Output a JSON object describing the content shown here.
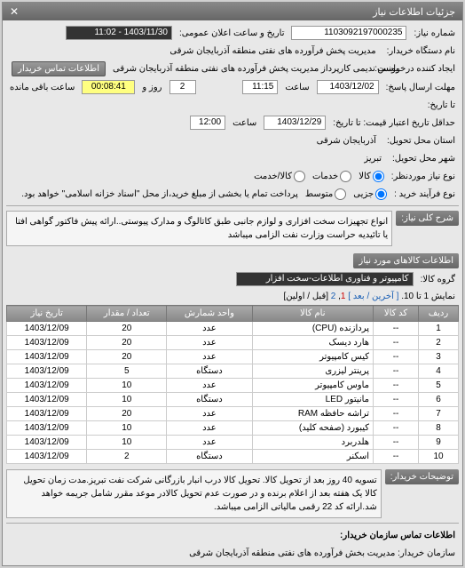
{
  "panel": {
    "title": "جزئیات اطلاعات نیاز"
  },
  "fields": {
    "need_no_label": "شماره نیاز:",
    "need_no": "1103092197000235",
    "announce_label": "تاریخ و ساعت اعلان عمومی:",
    "announce_value": "1403/11/30 - 11:02",
    "buyer_label": "نام دستگاه خریدار:",
    "buyer_value": "مدیریت پخش فرآورده های نفتی منطقه آذربایجان شرقی",
    "creator_label": "ایجاد کننده درخواست:",
    "creator_value": "یونس ندیمی کارپرداز مدیریت پخش فرآورده های نفتی منطقه آذربایجان شرقی",
    "buyer_contact_btn": "اطلاعات تماس خریدار",
    "deadline_send_label": "مهلت ارسال پاسخ:",
    "deadline_send_date": "1403/12/02",
    "time_label": "ساعت",
    "deadline_send_time": "11:15",
    "days_field": "2",
    "day_label": "روز و",
    "countdown": "00:08:41",
    "remain_label": "ساعت باقی مانده",
    "validity_label": "تا تاریخ:",
    "price_deadline_label": "حداقل تاریخ اعتبار قیمت: تا تاریخ:",
    "price_deadline_date": "1403/12/29",
    "price_deadline_time": "12:00",
    "delivery_province_label": "استان محل تحویل:",
    "delivery_province": "آذربایجان شرقی",
    "delivery_city_label": "شهر محل تحویل:",
    "delivery_city": "تبریز",
    "need_type_label": "نوع نیاز موردنظر:",
    "purchase_type_label": "نوع فرآیند خرید :",
    "payment_note": "پرداخت تمام یا بخشی از مبلغ خرید،از محل \"اسناد خزانه اسلامی\" خواهد بود.",
    "radio_kala": "کالا",
    "radio_khadamat": "خدمات",
    "radio_kala_khadamat": "کالا/خدمت",
    "radio_jozi": "جزیی",
    "radio_motavasset": "متوسط",
    "title_section": "شرح کلی نیاز:",
    "title_text": "انواع تجهیزات سخت افزاری و لوازم جانبی طبق کاتالوگ و مدارک پیوستی..ارائه پیش فاکتور گواهی افتا یا تائیدیه حراست وزارت نفت الزامی میباشد",
    "group_section": "اطلاعات کالاهای مورد نیاز",
    "group_label": "گروه کالا:",
    "group_value": "کامپیوتر و فناوری اطلاعات-سخت افزار",
    "pagination_text": "نمایش 1 تا 10.",
    "pagination_prev": "[ آخرین / بعد ]",
    "pagination_pages": [
      "1",
      "2"
    ],
    "pagination_next": "[قبل / اولین]",
    "note_label": "توضیحات خریدار:",
    "note_text": "تسویه 40 روز بعد از تحویل کالا. تحویل کالا درب انبار بازرگانی شرکت نفت تبریز.مدت زمان تحویل کالا یک هفته بعد از اعلام برنده و در صورت عدم تحویل کالادر موعد مقرر شامل جریمه خواهد شد.ارائه کد 22 رقمی مالیاتی الزامی میباشد.",
    "org_contact_label": "اطلاعات تماس سازمان خریدار:",
    "org_contact_value": "سازمان خریدار: مدیریت بخش فرآورده های نفتی منطقه آذربایجان شرقی"
  },
  "table": {
    "columns": [
      "ردیف",
      "کد کالا",
      "نام کالا",
      "واحد شمارش",
      "تعداد / مقدار",
      "تاریخ نیاز"
    ],
    "rows": [
      [
        "1",
        "--",
        "پردازنده (CPU)",
        "عدد",
        "20",
        "1403/12/09"
      ],
      [
        "2",
        "--",
        "هارد دیسک",
        "عدد",
        "20",
        "1403/12/09"
      ],
      [
        "3",
        "--",
        "کیس کامپیوتر",
        "عدد",
        "20",
        "1403/12/09"
      ],
      [
        "4",
        "--",
        "پرینتر لیزری",
        "دستگاه",
        "5",
        "1403/12/09"
      ],
      [
        "5",
        "--",
        "ماوس کامپیوتر",
        "عدد",
        "10",
        "1403/12/09"
      ],
      [
        "6",
        "--",
        "مانیتور LED",
        "دستگاه",
        "10",
        "1403/12/09"
      ],
      [
        "7",
        "--",
        "تراشه حافظه RAM",
        "عدد",
        "20",
        "1403/12/09"
      ],
      [
        "8",
        "--",
        "کیبورد (صفحه کلید)",
        "عدد",
        "10",
        "1403/12/09"
      ],
      [
        "9",
        "--",
        "هلدربرد",
        "عدد",
        "10",
        "1403/12/09"
      ],
      [
        "10",
        "--",
        "اسکنر",
        "دستگاه",
        "2",
        "1403/12/09"
      ]
    ]
  }
}
